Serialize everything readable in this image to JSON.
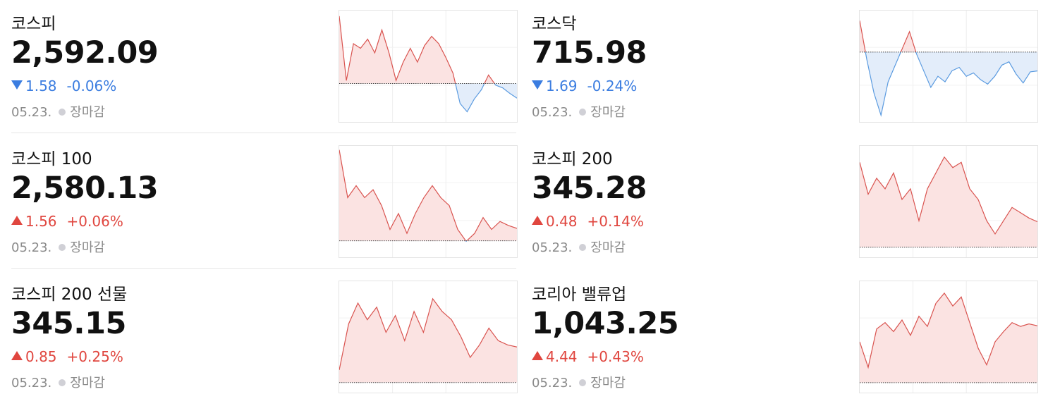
{
  "cards": [
    {
      "name": "코스피",
      "price": "2,592.09",
      "direction": "down",
      "change": "1.58",
      "percent": "-0.06%",
      "date": "05.23.",
      "status": "장마감",
      "chart": {
        "baseline": 2593.67,
        "ylim": [
          2589.5,
          2601.6
        ],
        "values": [
          2601,
          2594,
          2598,
          2597.5,
          2598.5,
          2597,
          2599.5,
          2597,
          2594,
          2596,
          2597.5,
          2596,
          2597.8,
          2598.8,
          2598,
          2596.5,
          2594.8,
          2591.5,
          2590.6,
          2592,
          2593,
          2594.6,
          2593.5,
          2593.2,
          2592.6,
          2592.09
        ]
      }
    },
    {
      "name": "코스닥",
      "price": "715.98",
      "direction": "down",
      "change": "1.69",
      "percent": "-0.24%",
      "date": "05.23.",
      "status": "장마감",
      "chart": {
        "baseline": 717.67,
        "ylim": [
          711.4,
          721.4
        ],
        "values": [
          720.5,
          717,
          714,
          712,
          715,
          716.5,
          718,
          719.5,
          717.5,
          716,
          714.5,
          715.5,
          715,
          716,
          716.3,
          715.5,
          715.8,
          715.2,
          714.8,
          715.5,
          716.5,
          716.8,
          715.7,
          714.9,
          715.9,
          715.98
        ]
      }
    },
    {
      "name": "코스피 100",
      "price": "2,580.13",
      "direction": "up",
      "change": "1.56",
      "percent": "+0.06%",
      "date": "05.23.",
      "status": "장마감",
      "chart": {
        "baseline": 2578.57,
        "ylim": [
          2576.5,
          2590.5
        ],
        "values": [
          2590,
          2584,
          2585.5,
          2584,
          2585,
          2583,
          2580,
          2582,
          2579.5,
          2582,
          2584,
          2585.5,
          2584,
          2583,
          2580,
          2578.5,
          2579.5,
          2581.5,
          2580,
          2581,
          2580.5,
          2580.13
        ]
      }
    },
    {
      "name": "코스피 200",
      "price": "345.28",
      "direction": "up",
      "change": "0.48",
      "percent": "+0.14%",
      "date": "05.23.",
      "status": "장마감",
      "chart": {
        "baseline": 344.8,
        "ylim": [
          344.61,
          346.71
        ],
        "values": [
          346.4,
          345.8,
          346.1,
          345.9,
          346.2,
          345.7,
          345.9,
          345.3,
          345.9,
          346.2,
          346.5,
          346.3,
          346.4,
          345.9,
          345.7,
          345.3,
          345.05,
          345.3,
          345.55,
          345.45,
          345.35,
          345.28
        ]
      }
    },
    {
      "name": "코스피 200 선물",
      "price": "345.15",
      "direction": "up",
      "change": "0.85",
      "percent": "+0.25%",
      "date": "05.23.",
      "status": "장마감",
      "chart": {
        "baseline": 344.3,
        "ylim": [
          344.06,
          346.72
        ],
        "values": [
          344.6,
          345.7,
          346.2,
          345.8,
          346.1,
          345.5,
          345.9,
          345.3,
          346.0,
          345.5,
          346.3,
          346.0,
          345.8,
          345.4,
          344.9,
          345.2,
          345.6,
          345.3,
          345.2,
          345.15
        ]
      }
    },
    {
      "name": "코리아 밸류업",
      "price": "1,043.25",
      "direction": "up",
      "change": "4.44",
      "percent": "+0.43%",
      "date": "05.23.",
      "status": "장마감",
      "chart": {
        "baseline": 1038.81,
        "ylim": [
          1038.03,
          1046.73
        ],
        "values": [
          1042,
          1040,
          1043,
          1043.5,
          1042.8,
          1043.7,
          1042.5,
          1044,
          1043.2,
          1045,
          1045.8,
          1044.8,
          1045.5,
          1043.5,
          1041.5,
          1040.2,
          1042,
          1042.8,
          1043.5,
          1043.2,
          1043.4,
          1043.25
        ]
      }
    }
  ]
}
